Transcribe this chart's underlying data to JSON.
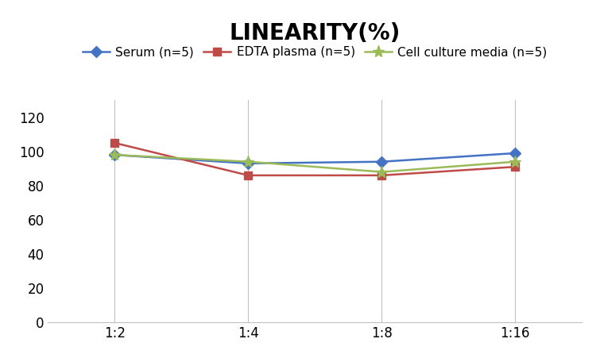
{
  "title": "LINEARITY(%)",
  "x_labels": [
    "1:2",
    "1:4",
    "1:8",
    "1:16"
  ],
  "series": [
    {
      "label": "Serum (n=5)",
      "values": [
        98,
        93,
        94,
        99
      ],
      "color": "#4472C4",
      "marker": "D"
    },
    {
      "label": "EDTA plasma (n=5)",
      "values": [
        105,
        86,
        86,
        91
      ],
      "color": "#BE4B48",
      "marker": "s"
    },
    {
      "label": "Cell culture media (n=5)",
      "values": [
        98,
        94,
        88,
        94
      ],
      "color": "#9BBB59",
      "marker": "*"
    }
  ],
  "ylim": [
    0,
    130
  ],
  "yticks": [
    0,
    20,
    40,
    60,
    80,
    100,
    120
  ],
  "background_color": "#FFFFFF",
  "title_fontsize": 20,
  "legend_fontsize": 11,
  "tick_fontsize": 12,
  "grid_color": "#C0C0C0",
  "spine_color": "#C0C0C0"
}
